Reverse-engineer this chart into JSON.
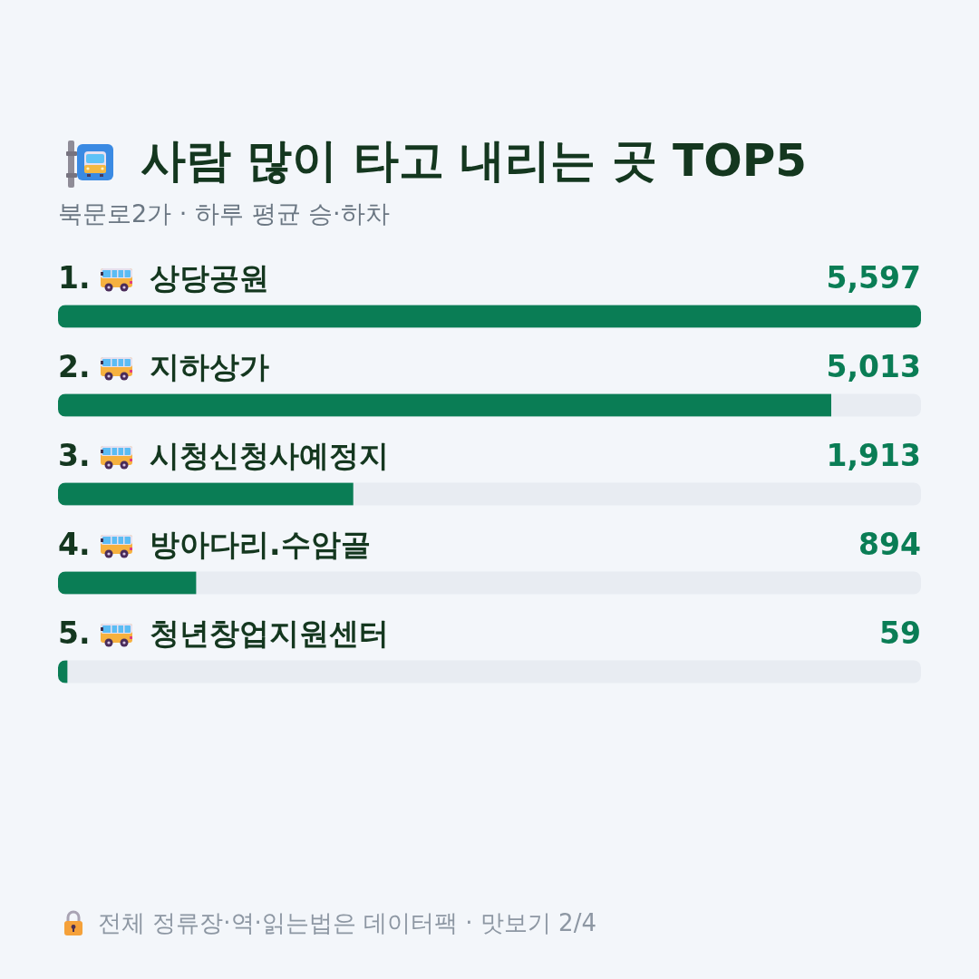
{
  "chart_data": {
    "type": "bar",
    "orientation": "horizontal",
    "title": "사람 많이 타고 내리는 곳 TOP5",
    "subtitle": "북문로2가 · 하루 평균 승·하차",
    "categories": [
      "상당공원",
      "지하상가",
      "시청신청사예정지",
      "방아다리.수암골",
      "청년창업지원센터"
    ],
    "values": [
      5597,
      5013,
      1913,
      894,
      59
    ],
    "value_labels": [
      "5,597",
      "5,013",
      "1,913",
      "894",
      "59"
    ],
    "color": "#0a7d55",
    "tick_labels": "y",
    "annotations": [
      "1.",
      "2.",
      "3.",
      "4.",
      "5.",
      "전체 정류장·역·읽는법은 데이터팩 · 맛보기 2/4"
    ]
  }
}
